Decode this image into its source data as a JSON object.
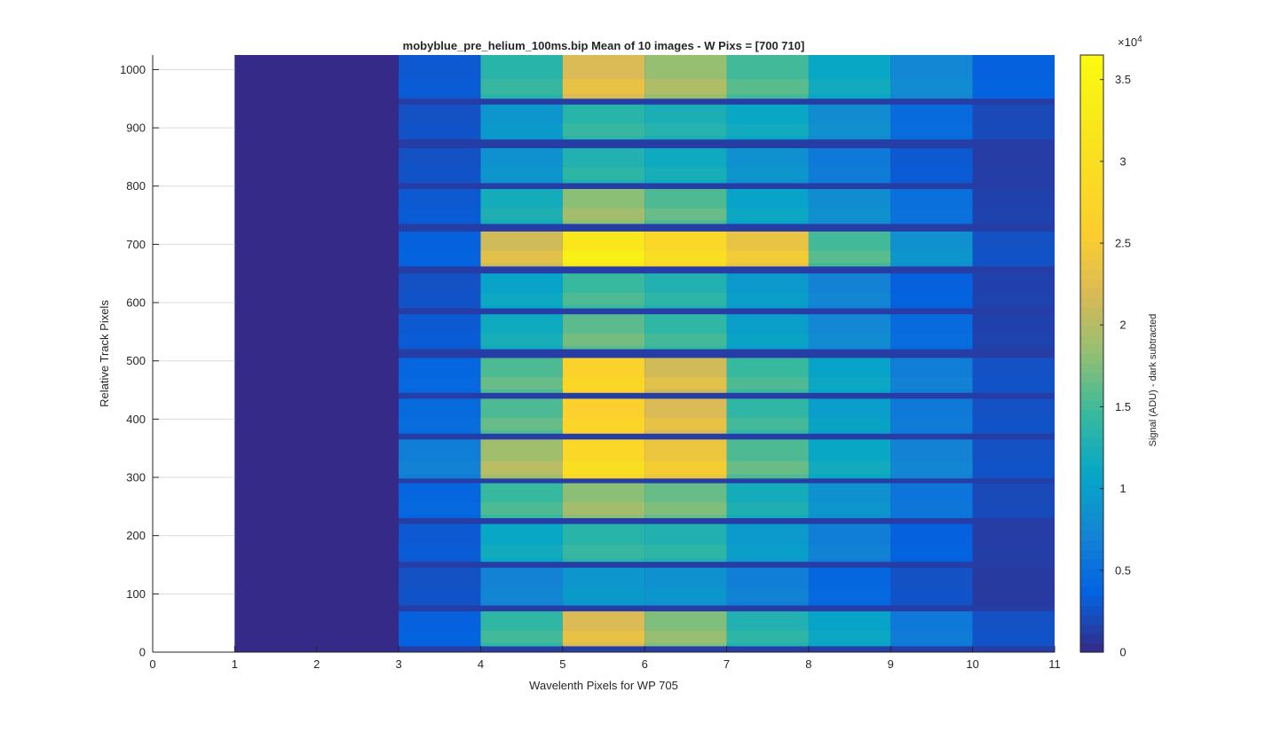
{
  "chart_data": {
    "type": "heatmap",
    "title": "mobyblue_pre_helium_100ms.bip  Mean of 10 images - W Pixs = [700  710]",
    "xlabel": "Wavelenth Pixels for WP 705",
    "ylabel": "Relative Track Pixels",
    "xlim": [
      0,
      11
    ],
    "ylim": [
      0,
      1025
    ],
    "x_ticks": [
      0,
      1,
      2,
      3,
      4,
      5,
      6,
      7,
      8,
      9,
      10,
      11
    ],
    "y_ticks": [
      0,
      100,
      200,
      300,
      400,
      500,
      600,
      700,
      800,
      900,
      1000
    ],
    "grid": "horizontal",
    "columns": [
      {
        "x0": 1,
        "x1": 3
      },
      {
        "x0": 3,
        "x1": 4
      },
      {
        "x0": 4,
        "x1": 5
      },
      {
        "x0": 5,
        "x1": 6
      },
      {
        "x0": 6,
        "x1": 7
      },
      {
        "x0": 7,
        "x1": 8
      },
      {
        "x0": 8,
        "x1": 9
      },
      {
        "x0": 9,
        "x1": 10
      },
      {
        "x0": 10,
        "x1": 11
      }
    ],
    "tracks": [
      {
        "y0": 10,
        "y1": 70,
        "values": [
          0,
          3500,
          14000,
          22000,
          17500,
          13000,
          10500,
          6000,
          2500
        ]
      },
      {
        "y0": 80,
        "y1": 145,
        "values": [
          0,
          2500,
          7000,
          9000,
          8500,
          6500,
          4000,
          2500,
          1000
        ]
      },
      {
        "y0": 155,
        "y1": 220,
        "values": [
          0,
          3000,
          11000,
          13500,
          13000,
          9500,
          6500,
          3500,
          1200
        ]
      },
      {
        "y0": 230,
        "y1": 290,
        "values": [
          0,
          4000,
          14500,
          18000,
          16500,
          12000,
          8500,
          5500,
          2000
        ]
      },
      {
        "y0": 298,
        "y1": 365,
        "values": [
          0,
          6500,
          19000,
          28000,
          24000,
          15500,
          11000,
          7000,
          2500
        ]
      },
      {
        "y0": 375,
        "y1": 435,
        "values": [
          0,
          4500,
          15500,
          26000,
          22000,
          14000,
          10000,
          6000,
          2500
        ]
      },
      {
        "y0": 445,
        "y1": 505,
        "values": [
          0,
          4000,
          15500,
          26500,
          21500,
          14500,
          10500,
          6500,
          2500
        ]
      },
      {
        "y0": 520,
        "y1": 580,
        "values": [
          0,
          3000,
          11500,
          16000,
          14000,
          10000,
          7500,
          4500,
          1500
        ]
      },
      {
        "y0": 590,
        "y1": 650,
        "values": [
          0,
          2500,
          10500,
          14500,
          13000,
          9500,
          7000,
          3500,
          1500
        ]
      },
      {
        "y0": 662,
        "y1": 722,
        "values": [
          0,
          3500,
          21500,
          32000,
          28000,
          23500,
          15000,
          8500,
          2500
        ]
      },
      {
        "y0": 735,
        "y1": 795,
        "values": [
          0,
          3000,
          12000,
          18000,
          15500,
          10500,
          8000,
          5000,
          1500
        ]
      },
      {
        "y0": 805,
        "y1": 865,
        "values": [
          0,
          2500,
          8500,
          13000,
          11500,
          8500,
          6000,
          3000,
          1200
        ]
      },
      {
        "y0": 880,
        "y1": 940,
        "values": [
          0,
          2500,
          9000,
          13500,
          12500,
          11000,
          8000,
          4500,
          2000
        ]
      },
      {
        "y0": 950,
        "y1": 1025,
        "values": [
          0,
          3000,
          13500,
          22000,
          18500,
          15000,
          11000,
          7500,
          3500
        ]
      }
    ],
    "colorbar": {
      "label": "Signal (ADU) - dark subtracted",
      "exponent_label": "×10",
      "exponent": "4",
      "min": 0,
      "max": 36500,
      "ticks": [
        0,
        5000,
        10000,
        15000,
        20000,
        25000,
        30000,
        35000
      ],
      "tick_labels": [
        "0",
        "0.5",
        "1",
        "1.5",
        "2",
        "2.5",
        "3",
        "3.5"
      ],
      "colormap": "parula"
    }
  }
}
